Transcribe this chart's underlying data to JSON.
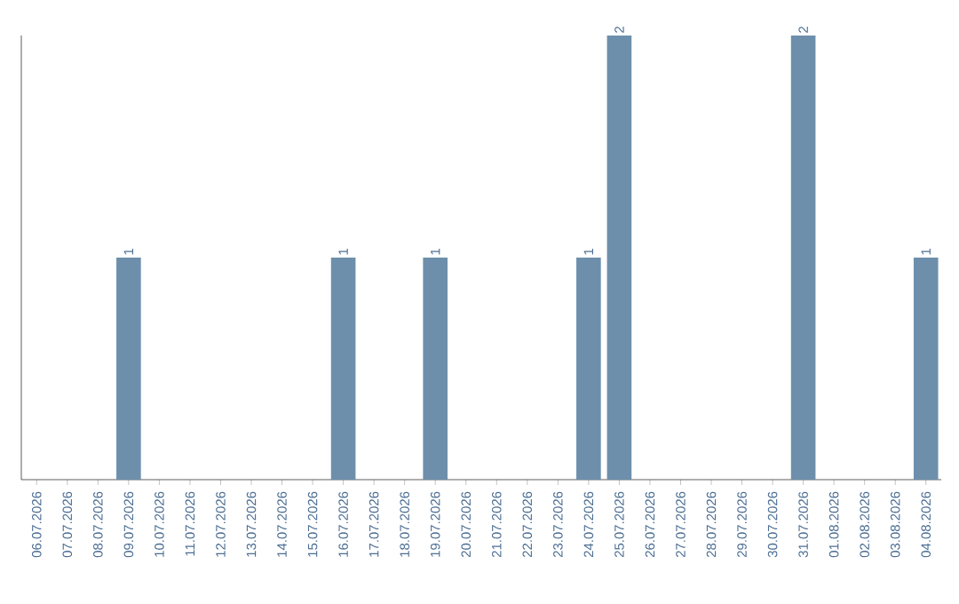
{
  "chart_data": {
    "type": "bar",
    "categories": [
      "06.07.2026",
      "07.07.2026",
      "08.07.2026",
      "09.07.2026",
      "10.07.2026",
      "11.07.2026",
      "12.07.2026",
      "13.07.2026",
      "14.07.2026",
      "15.07.2026",
      "16.07.2026",
      "17.07.2026",
      "18.07.2026",
      "19.07.2026",
      "20.07.2026",
      "21.07.2026",
      "22.07.2026",
      "23.07.2026",
      "24.07.2026",
      "25.07.2026",
      "26.07.2026",
      "27.07.2026",
      "28.07.2026",
      "29.07.2026",
      "30.07.2026",
      "31.07.2026",
      "01.08.2026",
      "02.08.2026",
      "03.08.2026",
      "04.08.2026"
    ],
    "values": [
      0,
      0,
      0,
      1,
      0,
      0,
      0,
      0,
      0,
      0,
      1,
      0,
      0,
      1,
      0,
      0,
      0,
      0,
      1,
      2,
      0,
      0,
      0,
      0,
      0,
      2,
      0,
      0,
      0,
      1
    ],
    "value_labels": [
      null,
      null,
      null,
      "1",
      null,
      null,
      null,
      null,
      null,
      null,
      "1",
      null,
      null,
      "1",
      null,
      null,
      null,
      null,
      "1",
      "2",
      null,
      null,
      null,
      null,
      null,
      "2",
      null,
      null,
      null,
      "1"
    ],
    "color": "#6d8fab",
    "relative": false
  }
}
